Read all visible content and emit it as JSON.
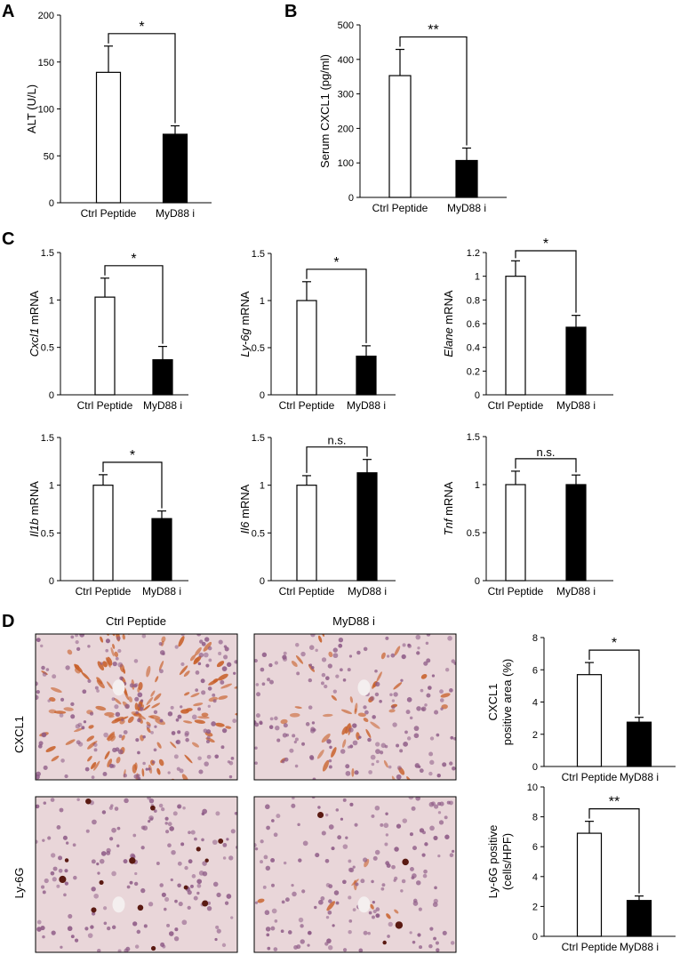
{
  "panel_letters": {
    "A": "A",
    "B": "B",
    "C": "C",
    "D": "D"
  },
  "histology": {
    "col_labels": [
      "Ctrl Peptide",
      "MyD88 i"
    ],
    "row_labels": [
      "CXCL1",
      "Ly-6G"
    ],
    "colors": {
      "tissue": "#e9d6d9",
      "nuclei": "#8d5a86",
      "stain": "#c8602a",
      "dot": "#5a1a12"
    }
  },
  "colors": {
    "ctrl_fill": "#ffffff",
    "myd88_fill": "#000000",
    "line": "#000000"
  },
  "chart_data": [
    {
      "id": "A",
      "type": "bar",
      "categories": [
        "Ctrl Peptide",
        "MyD88 i"
      ],
      "values": [
        139,
        73
      ],
      "errors": [
        28,
        9
      ],
      "ylabel": "ALT (U/L)",
      "ylabel_italic": "",
      "ylim": [
        0,
        200
      ],
      "yticks": [
        "0",
        "50",
        "100",
        "150",
        "200"
      ],
      "significance": "*"
    },
    {
      "id": "B",
      "type": "bar",
      "categories": [
        "Ctrl Peptide",
        "MyD88 i"
      ],
      "values": [
        353,
        107
      ],
      "errors": [
        76,
        36
      ],
      "ylabel": "Serum CXCL1 (pg/ml)",
      "ylabel_italic": "",
      "ylim": [
        0,
        500
      ],
      "yticks": [
        "0",
        "100",
        "200",
        "300",
        "400",
        "500"
      ],
      "significance": "**"
    },
    {
      "id": "C1",
      "type": "bar",
      "categories": [
        "Ctrl Peptide",
        "MyD88 i"
      ],
      "values": [
        1.03,
        0.37
      ],
      "errors": [
        0.2,
        0.14
      ],
      "ylabel": " mRNA",
      "ylabel_italic": "Cxcl1",
      "ylim": [
        0,
        1.5
      ],
      "yticks": [
        "0",
        "0.5",
        "1",
        "1.5"
      ],
      "significance": "*"
    },
    {
      "id": "C2",
      "type": "bar",
      "categories": [
        "Ctrl Peptide",
        "MyD88 i"
      ],
      "values": [
        1.0,
        0.41
      ],
      "errors": [
        0.2,
        0.11
      ],
      "ylabel": " mRNA",
      "ylabel_italic": "Ly-6g",
      "ylim": [
        0,
        1.5
      ],
      "yticks": [
        "0",
        "0.5",
        "1",
        "1.5"
      ],
      "significance": "*"
    },
    {
      "id": "C3",
      "type": "bar",
      "categories": [
        "Ctrl Peptide",
        "MyD88 i"
      ],
      "values": [
        1.0,
        0.57
      ],
      "errors": [
        0.13,
        0.1
      ],
      "ylabel": " mRNA",
      "ylabel_italic": "Elane",
      "ylim": [
        0,
        1.2
      ],
      "yticks": [
        "0",
        "0.2",
        "0.4",
        "0.6",
        "0.8",
        "1",
        "1.2"
      ],
      "significance": "*"
    },
    {
      "id": "C4",
      "type": "bar",
      "categories": [
        "Ctrl Peptide",
        "MyD88 i"
      ],
      "values": [
        1.0,
        0.65
      ],
      "errors": [
        0.11,
        0.08
      ],
      "ylabel": " mRNA",
      "ylabel_italic": "Il1b",
      "ylim": [
        0,
        1.5
      ],
      "yticks": [
        "0",
        "0.5",
        "1",
        "1.5"
      ],
      "significance": "*"
    },
    {
      "id": "C5",
      "type": "bar",
      "categories": [
        "Ctrl Peptide",
        "MyD88 i"
      ],
      "values": [
        1.0,
        1.13
      ],
      "errors": [
        0.1,
        0.14
      ],
      "ylabel": " mRNA",
      "ylabel_italic": "Il6",
      "ylim": [
        0,
        1.5
      ],
      "yticks": [
        "0",
        "0.5",
        "1",
        "1.5"
      ],
      "significance": "n.s."
    },
    {
      "id": "C6",
      "type": "bar",
      "categories": [
        "Ctrl Peptide",
        "MyD88 i"
      ],
      "values": [
        1.0,
        1.0
      ],
      "errors": [
        0.14,
        0.1
      ],
      "ylabel": " mRNA",
      "ylabel_italic": "Tnf",
      "ylim": [
        0,
        1.5
      ],
      "yticks": [
        "0",
        "0.5",
        "1",
        "1.5"
      ],
      "significance": "n.s."
    },
    {
      "id": "D1",
      "type": "bar",
      "categories": [
        "Ctrl Peptide",
        "MyD88 i"
      ],
      "values": [
        5.7,
        2.75
      ],
      "errors": [
        0.75,
        0.3
      ],
      "ylabel": "CXCL1|positive area (%)",
      "ylabel_italic": "",
      "ylim": [
        0,
        8
      ],
      "yticks": [
        "0",
        "2",
        "4",
        "6",
        "8"
      ],
      "significance": "*"
    },
    {
      "id": "D2",
      "type": "bar",
      "categories": [
        "Ctrl Peptide",
        "MyD88 i"
      ],
      "values": [
        6.9,
        2.4
      ],
      "errors": [
        0.8,
        0.3
      ],
      "ylabel": "Ly-6G positive|(cells/HPF)",
      "ylabel_italic": "",
      "ylim": [
        0,
        10
      ],
      "yticks": [
        "0",
        "2",
        "4",
        "6",
        "8",
        "10"
      ],
      "significance": "**"
    }
  ]
}
